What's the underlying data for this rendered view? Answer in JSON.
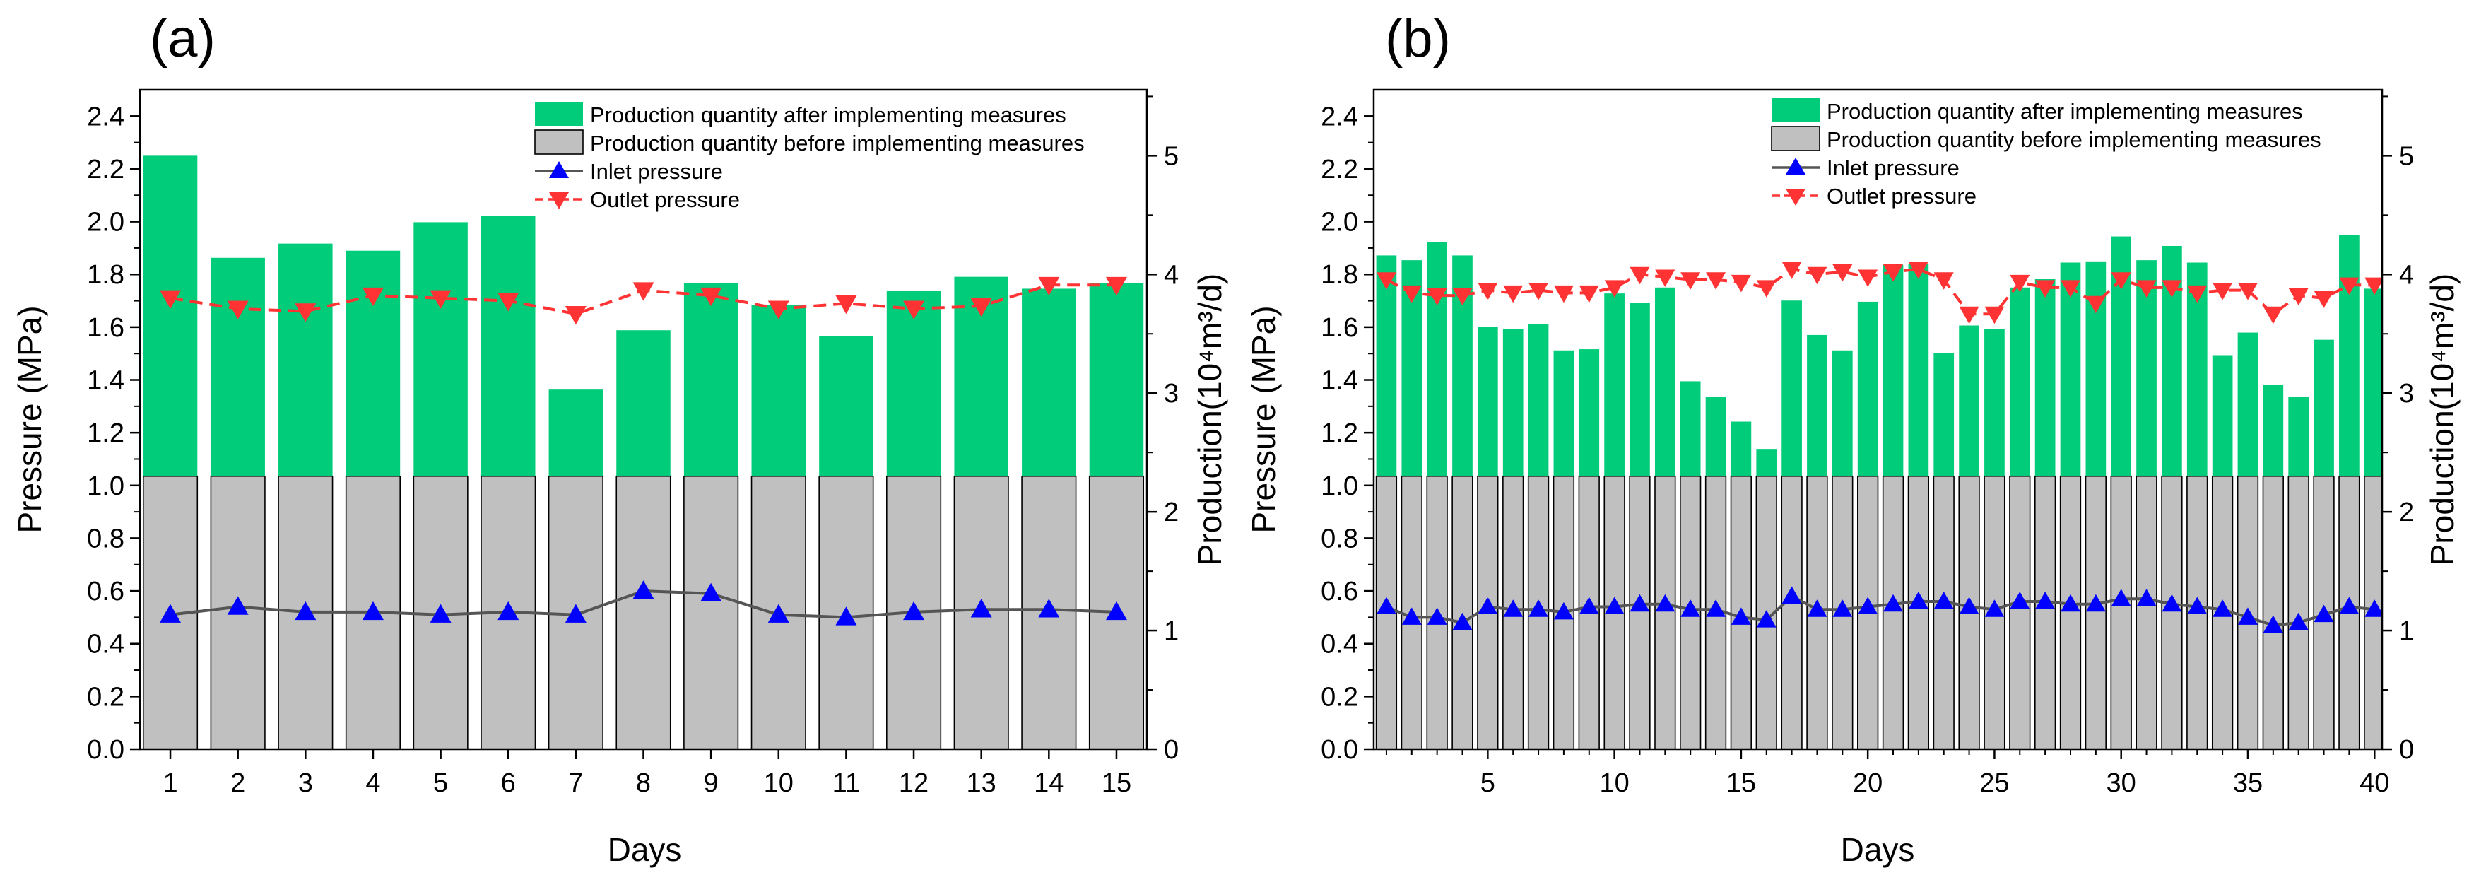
{
  "chart_data": [
    {
      "panel_label": "(a)",
      "type": "bar+line",
      "xlabel": "Days",
      "ylabel_left": "Pressure (MPa)",
      "ylabel_right": "Production(10⁴m³/d)",
      "x_ticks": [
        "1",
        "2",
        "3",
        "4",
        "5",
        "6",
        "7",
        "8",
        "9",
        "10",
        "11",
        "12",
        "13",
        "14",
        "15"
      ],
      "x_range": [
        0.55,
        15.45
      ],
      "ylim_left": [
        0,
        2.5
      ],
      "ylim_right": [
        0,
        5.556
      ],
      "y_ticks_left": [
        "0.0",
        "0.2",
        "0.4",
        "0.6",
        "0.8",
        "1.0",
        "1.2",
        "1.4",
        "1.6",
        "1.8",
        "2.0",
        "2.2",
        "2.4"
      ],
      "y_ticks_right": [
        "0",
        "1",
        "2",
        "3",
        "4",
        "5"
      ],
      "days": [
        1,
        2,
        3,
        4,
        5,
        6,
        7,
        8,
        9,
        10,
        11,
        12,
        13,
        14,
        15
      ],
      "bar_width": 0.8,
      "series": [
        {
          "name": "Production quantity after implementing measures",
          "kind": "bar",
          "axis": "right",
          "color": "#00cc7a",
          "values": [
            5.0,
            4.14,
            4.26,
            4.2,
            4.44,
            4.49,
            3.03,
            3.53,
            3.93,
            3.74,
            3.48,
            3.86,
            3.98,
            3.88,
            3.93
          ]
        },
        {
          "name": "Production quantity before implementing measures",
          "kind": "bar",
          "axis": "right",
          "color": "#c0c0c0",
          "values": [
            2.3,
            2.3,
            2.3,
            2.3,
            2.3,
            2.3,
            2.3,
            2.3,
            2.3,
            2.3,
            2.3,
            2.3,
            2.3,
            2.3,
            2.3
          ]
        },
        {
          "name": "Inlet pressure",
          "kind": "line",
          "axis": "left",
          "color": "#0000ff",
          "line_color": "#555555",
          "line_style": "solid",
          "marker": "triangle-up",
          "values": [
            0.51,
            0.54,
            0.52,
            0.52,
            0.51,
            0.52,
            0.51,
            0.6,
            0.59,
            0.51,
            0.5,
            0.52,
            0.53,
            0.53,
            0.52
          ]
        },
        {
          "name": "Outlet pressure",
          "kind": "line",
          "axis": "left",
          "color": "#ff3333",
          "line_color": "#ff3333",
          "line_style": "dashed",
          "marker": "triangle-down",
          "values": [
            1.71,
            1.67,
            1.66,
            1.72,
            1.71,
            1.7,
            1.65,
            1.74,
            1.72,
            1.67,
            1.69,
            1.67,
            1.68,
            1.76,
            1.76
          ]
        }
      ],
      "legend_position": "top-right"
    },
    {
      "panel_label": "(b)",
      "type": "bar+line",
      "xlabel": "Days",
      "ylabel_left": "Pressure (MPa)",
      "ylabel_right": "Production(10⁴m³/d)",
      "x_ticks": [
        "5",
        "10",
        "15",
        "20",
        "25",
        "30",
        "35",
        "40"
      ],
      "x_range": [
        0.5,
        40.3
      ],
      "ylim_left": [
        0,
        2.5
      ],
      "ylim_right": [
        0,
        5.556
      ],
      "y_ticks_left": [
        "0.0",
        "0.2",
        "0.4",
        "0.6",
        "0.8",
        "1.0",
        "1.2",
        "1.4",
        "1.6",
        "1.8",
        "2.0",
        "2.2",
        "2.4"
      ],
      "y_ticks_right": [
        "0",
        "1",
        "2",
        "3",
        "4",
        "5"
      ],
      "days": [
        1,
        2,
        3,
        4,
        5,
        6,
        7,
        8,
        9,
        10,
        11,
        12,
        13,
        14,
        15,
        16,
        17,
        18,
        19,
        20,
        21,
        22,
        23,
        24,
        25,
        26,
        27,
        28,
        29,
        30,
        31,
        32,
        33,
        34,
        35,
        36,
        37,
        38,
        39,
        40
      ],
      "bar_width": 0.8,
      "series": [
        {
          "name": "Production quantity after implementing measures",
          "kind": "bar",
          "axis": "right",
          "color": "#00cc7a",
          "values": [
            4.16,
            4.12,
            4.27,
            4.16,
            3.56,
            3.54,
            3.58,
            3.36,
            3.37,
            3.84,
            3.76,
            3.89,
            3.1,
            2.97,
            2.76,
            2.53,
            3.78,
            3.49,
            3.36,
            3.77,
            4.08,
            4.09,
            3.34,
            3.57,
            3.54,
            3.89,
            3.96,
            4.1,
            4.11,
            4.32,
            4.12,
            4.24,
            4.1,
            3.32,
            3.51,
            3.07,
            2.97,
            3.45,
            4.33,
            3.88
          ]
        },
        {
          "name": "Production quantity before implementing measures",
          "kind": "bar",
          "axis": "right",
          "color": "#c0c0c0",
          "values": [
            2.3,
            2.3,
            2.3,
            2.3,
            2.3,
            2.3,
            2.3,
            2.3,
            2.3,
            2.3,
            2.3,
            2.3,
            2.3,
            2.3,
            2.3,
            2.3,
            2.3,
            2.3,
            2.3,
            2.3,
            2.3,
            2.3,
            2.3,
            2.3,
            2.3,
            2.3,
            2.3,
            2.3,
            2.3,
            2.3,
            2.3,
            2.3,
            2.3,
            2.3,
            2.3,
            2.3,
            2.3,
            2.3,
            2.3,
            2.3
          ]
        },
        {
          "name": "Inlet pressure",
          "kind": "line",
          "axis": "left",
          "color": "#0000ff",
          "line_color": "#555555",
          "line_style": "solid",
          "marker": "triangle-up",
          "values": [
            0.54,
            0.5,
            0.5,
            0.48,
            0.54,
            0.53,
            0.53,
            0.52,
            0.54,
            0.54,
            0.55,
            0.55,
            0.53,
            0.53,
            0.5,
            0.49,
            0.58,
            0.53,
            0.53,
            0.54,
            0.55,
            0.56,
            0.56,
            0.54,
            0.53,
            0.56,
            0.56,
            0.55,
            0.55,
            0.57,
            0.57,
            0.55,
            0.54,
            0.53,
            0.5,
            0.47,
            0.48,
            0.51,
            0.54,
            0.53
          ]
        },
        {
          "name": "Outlet pressure",
          "kind": "line",
          "axis": "left",
          "color": "#ff3333",
          "line_color": "#ff3333",
          "line_style": "dashed",
          "marker": "triangle-down",
          "values": [
            1.78,
            1.73,
            1.72,
            1.72,
            1.74,
            1.73,
            1.74,
            1.73,
            1.73,
            1.75,
            1.8,
            1.79,
            1.78,
            1.78,
            1.77,
            1.75,
            1.82,
            1.8,
            1.81,
            1.79,
            1.81,
            1.82,
            1.78,
            1.65,
            1.65,
            1.77,
            1.75,
            1.75,
            1.69,
            1.78,
            1.75,
            1.75,
            1.73,
            1.74,
            1.74,
            1.65,
            1.72,
            1.71,
            1.76,
            1.76
          ]
        }
      ],
      "legend_position": "top-right"
    }
  ]
}
